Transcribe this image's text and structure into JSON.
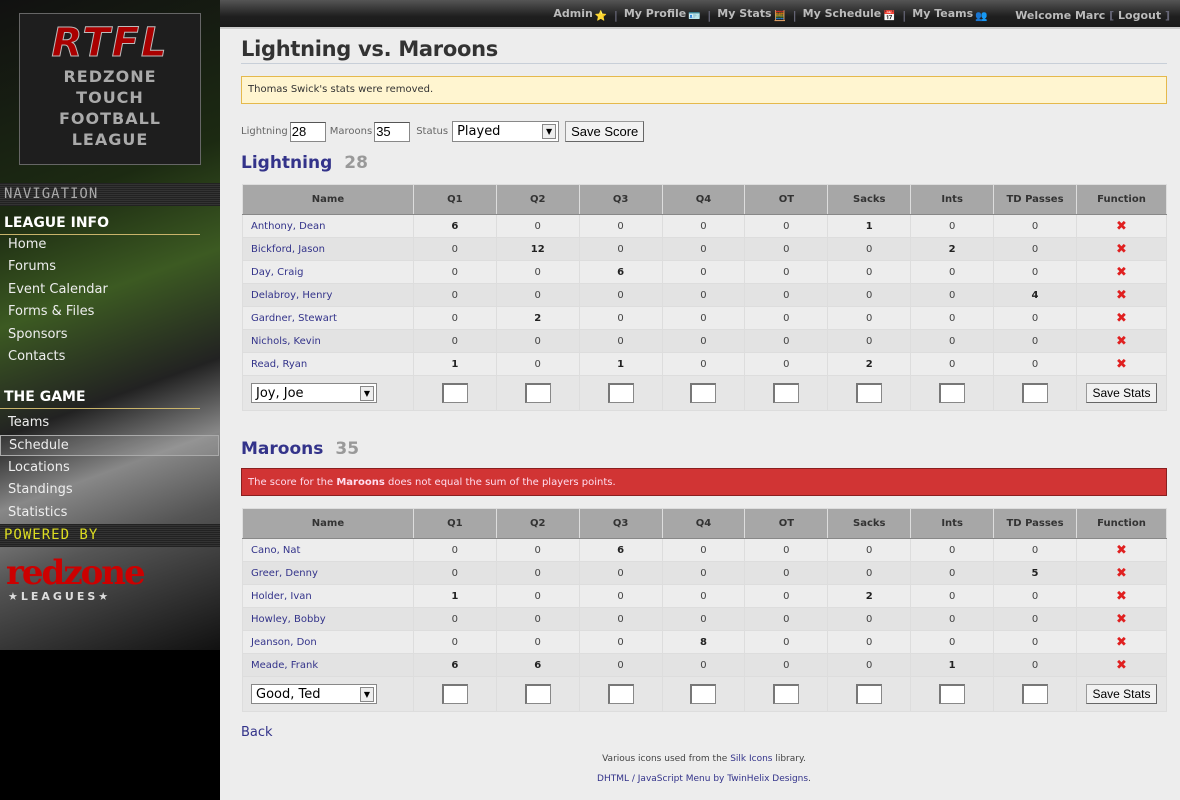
{
  "logo": {
    "title": "RTFL",
    "lines": [
      "REDZONE",
      "TOUCH",
      "FOOTBALL",
      "LEAGUE"
    ]
  },
  "sidebar": {
    "nav_label": "NAVIGATION",
    "sections": [
      {
        "title": "LEAGUE INFO",
        "items": [
          "Home",
          "Forums",
          "Event Calendar",
          "Forms & Files",
          "Sponsors",
          "Contacts"
        ]
      },
      {
        "title": "THE GAME",
        "items": [
          "Teams",
          "Schedule",
          "Locations",
          "Standings",
          "Statistics"
        ],
        "active": "Schedule"
      }
    ],
    "powered_label": "POWERED BY",
    "powered_logo": "redzone",
    "powered_logo_sub": "★LEAGUES★"
  },
  "topbar": {
    "links": [
      {
        "label": "Admin",
        "icon": "star-icon"
      },
      {
        "label": "My Profile",
        "icon": "vcard-icon"
      },
      {
        "label": "My Stats",
        "icon": "calculator-icon"
      },
      {
        "label": "My Schedule",
        "icon": "calendar-icon"
      },
      {
        "label": "My Teams",
        "icon": "group-icon"
      }
    ],
    "welcome": "Welcome Marc",
    "logout": "Logout"
  },
  "page": {
    "title": "Lightning vs. Maroons",
    "notice": "Thomas Swick's stats were removed.",
    "form": {
      "team1_label": "Lightning",
      "team1_score": "28",
      "team2_label": "Maroons",
      "team2_score": "35",
      "status_label": "Status",
      "status_value": "Played",
      "save_label": "Save Score"
    }
  },
  "columns": [
    "Name",
    "Q1",
    "Q2",
    "Q3",
    "Q4",
    "OT",
    "Sacks",
    "Ints",
    "TD Passes",
    "Function"
  ],
  "teams": [
    {
      "name": "Lightning",
      "score": "28",
      "add_player": "Joy, Joe",
      "save_label": "Save Stats",
      "rows": [
        [
          "Anthony, Dean",
          6,
          0,
          0,
          0,
          0,
          1,
          0,
          0
        ],
        [
          "Bickford, Jason",
          0,
          12,
          0,
          0,
          0,
          0,
          2,
          0
        ],
        [
          "Day, Craig",
          0,
          0,
          6,
          0,
          0,
          0,
          0,
          0
        ],
        [
          "Delabroy, Henry",
          0,
          0,
          0,
          0,
          0,
          0,
          0,
          4
        ],
        [
          "Gardner, Stewart",
          0,
          2,
          0,
          0,
          0,
          0,
          0,
          0
        ],
        [
          "Nichols, Kevin",
          0,
          0,
          0,
          0,
          0,
          0,
          0,
          0
        ],
        [
          "Read, Ryan",
          1,
          0,
          1,
          0,
          0,
          2,
          0,
          0
        ]
      ]
    },
    {
      "name": "Maroons",
      "score": "35",
      "error_pre": "The score for the ",
      "error_bold": "Maroons",
      "error_post": " does not equal the sum of the players points.",
      "add_player": "Good, Ted",
      "save_label": "Save Stats",
      "rows": [
        [
          "Cano, Nat",
          0,
          0,
          6,
          0,
          0,
          0,
          0,
          0
        ],
        [
          "Greer, Denny",
          0,
          0,
          0,
          0,
          0,
          0,
          0,
          5
        ],
        [
          "Holder, Ivan",
          1,
          0,
          0,
          0,
          0,
          2,
          0,
          0
        ],
        [
          "Howley, Bobby",
          0,
          0,
          0,
          0,
          0,
          0,
          0,
          0
        ],
        [
          "Jeanson, Don",
          0,
          0,
          0,
          8,
          0,
          0,
          0,
          0
        ],
        [
          "Meade, Frank",
          6,
          6,
          0,
          0,
          0,
          0,
          1,
          0
        ]
      ]
    }
  ],
  "back": "Back",
  "footer": {
    "l1_pre": "Various icons used from the ",
    "l1_link": "Silk Icons",
    "l1_post": " library.",
    "l2_link": "DHTML / JavaScript Menu by TwinHelix Designs",
    "l2_post": "."
  },
  "colors": {
    "accent": "#33338a",
    "error": "#d13434",
    "notice": "#fff5d0"
  }
}
